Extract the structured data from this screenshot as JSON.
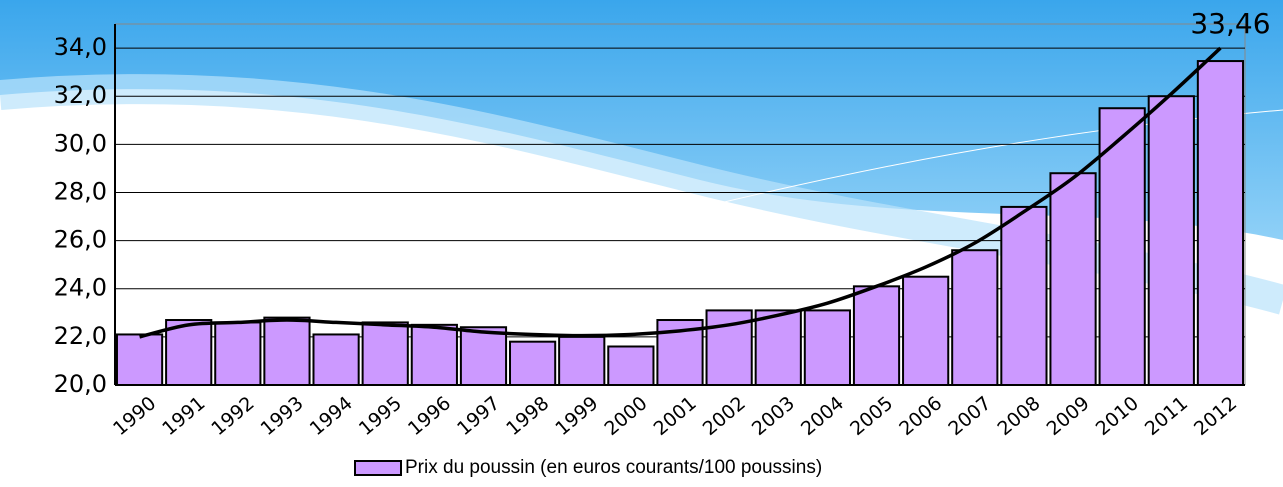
{
  "chart_data": {
    "type": "bar",
    "categories": [
      "1990",
      "1991",
      "1992",
      "1993",
      "1994",
      "1995",
      "1996",
      "1997",
      "1998",
      "1999",
      "2000",
      "2001",
      "2002",
      "2003",
      "2004",
      "2005",
      "2006",
      "2007",
      "2008",
      "2009",
      "2010",
      "2011",
      "2012"
    ],
    "series": [
      {
        "name": "Prix du poussin (en euros courants/100 poussins)",
        "color": "#cc99ff",
        "values": [
          22.1,
          22.7,
          22.6,
          22.8,
          22.1,
          22.6,
          22.5,
          22.4,
          21.8,
          22.0,
          21.6,
          22.7,
          23.1,
          23.1,
          23.1,
          24.1,
          24.5,
          25.6,
          27.4,
          28.8,
          31.5,
          32.0,
          33.46
        ],
        "value_labels": [
          null,
          null,
          null,
          null,
          null,
          null,
          null,
          null,
          null,
          null,
          null,
          null,
          null,
          null,
          null,
          null,
          null,
          null,
          null,
          null,
          null,
          null,
          "33,46"
        ]
      }
    ],
    "trendline": {
      "color": "#000000",
      "values": [
        22.0,
        22.5,
        22.6,
        22.7,
        22.6,
        22.5,
        22.4,
        22.2,
        22.1,
        22.05,
        22.1,
        22.25,
        22.5,
        22.9,
        23.4,
        24.1,
        24.9,
        25.9,
        27.2,
        28.6,
        30.3,
        32.1,
        34.0
      ]
    },
    "ylim": [
      20,
      35
    ],
    "yticks": [
      {
        "value": 20,
        "label": "20,0"
      },
      {
        "value": 22,
        "label": "22,0"
      },
      {
        "value": 24,
        "label": "24,0"
      },
      {
        "value": 26,
        "label": "26,0"
      },
      {
        "value": 28,
        "label": "28,0"
      },
      {
        "value": 30,
        "label": "30,0"
      },
      {
        "value": 32,
        "label": "32,0"
      },
      {
        "value": 34,
        "label": "34,0"
      }
    ],
    "grid": true,
    "legend": "bottom"
  }
}
